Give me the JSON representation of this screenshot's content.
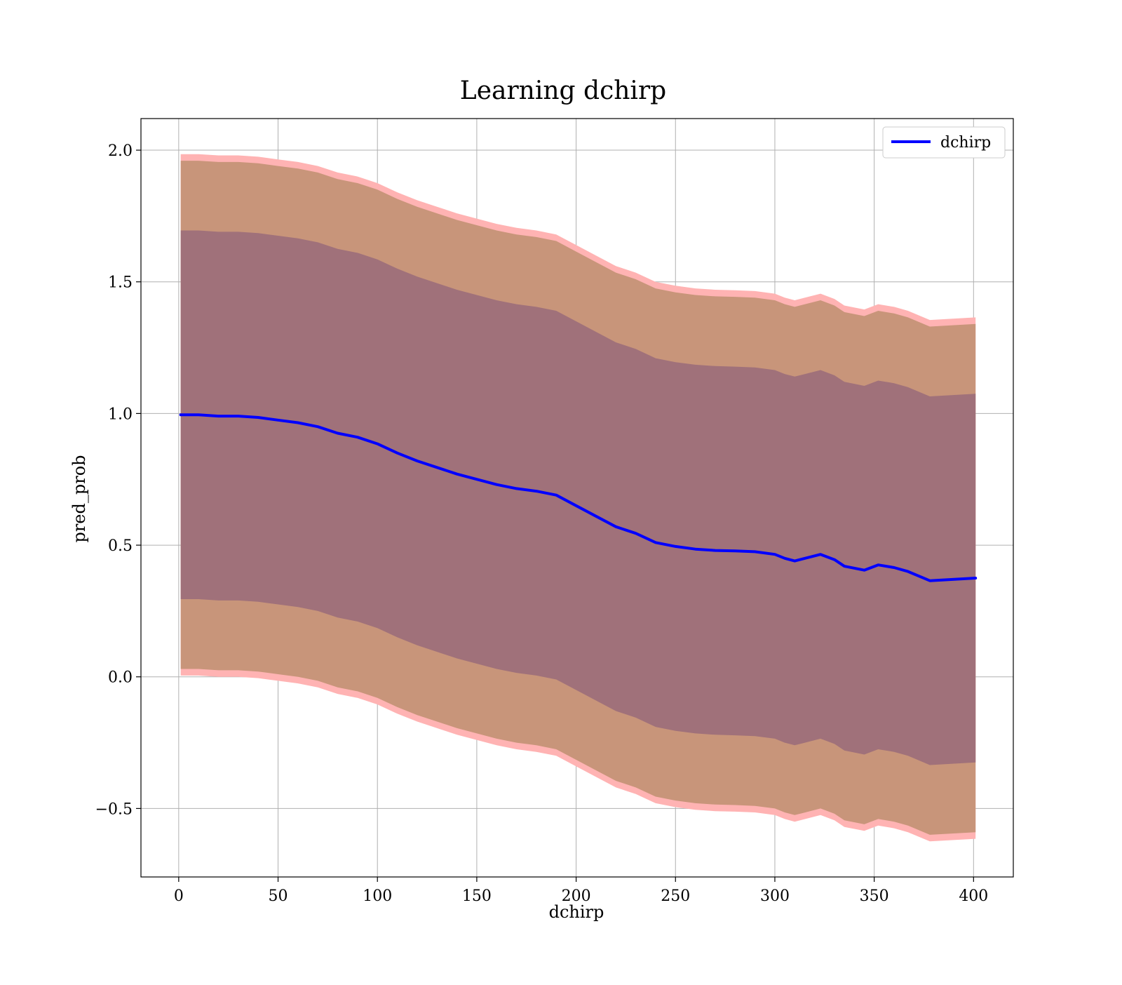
{
  "chart_data": {
    "type": "line",
    "title": "Learning dchirp",
    "xlabel": "dchirp",
    "ylabel": "pred_prob",
    "xlim": [
      -19,
      420
    ],
    "ylim": [
      -0.76,
      2.12
    ],
    "xticks": [
      0,
      50,
      100,
      150,
      200,
      250,
      300,
      350,
      400
    ],
    "yticks": [
      -0.5,
      0.0,
      0.5,
      1.0,
      1.5,
      2.0
    ],
    "xtick_labels": [
      "0",
      "50",
      "100",
      "150",
      "200",
      "250",
      "300",
      "350",
      "400"
    ],
    "ytick_labels": [
      "−0.5",
      "0.0",
      "0.5",
      "1.0",
      "1.5",
      "2.0"
    ],
    "grid": true,
    "legend_position": "top-right",
    "colors": {
      "line": "#0000ff",
      "outer_band": "#ffb3b3",
      "middle_band": "#c8957a",
      "inner_band": "#a0717a",
      "grid": "#b0b0b0"
    },
    "series": [
      {
        "name": "dchirp",
        "x": [
          1,
          10,
          20,
          30,
          40,
          50,
          60,
          70,
          80,
          90,
          100,
          110,
          120,
          130,
          140,
          150,
          160,
          170,
          180,
          190,
          200,
          210,
          220,
          230,
          240,
          250,
          260,
          270,
          280,
          290,
          300,
          305,
          310,
          323,
          330,
          335,
          345,
          352,
          360,
          367,
          378,
          401
        ],
        "y": [
          0.995,
          0.995,
          0.99,
          0.99,
          0.985,
          0.975,
          0.965,
          0.95,
          0.925,
          0.91,
          0.885,
          0.85,
          0.82,
          0.795,
          0.77,
          0.75,
          0.73,
          0.715,
          0.705,
          0.69,
          0.65,
          0.61,
          0.57,
          0.545,
          0.51,
          0.495,
          0.485,
          0.48,
          0.478,
          0.475,
          0.465,
          0.45,
          0.44,
          0.465,
          0.445,
          0.42,
          0.405,
          0.425,
          0.415,
          0.4,
          0.365,
          0.375
        ]
      }
    ],
    "bands": {
      "outer_upper": [
        1.985,
        1.985,
        1.98,
        1.98,
        1.975,
        1.965,
        1.955,
        1.94,
        1.915,
        1.9,
        1.875,
        1.84,
        1.81,
        1.785,
        1.76,
        1.74,
        1.72,
        1.705,
        1.695,
        1.68,
        1.64,
        1.6,
        1.56,
        1.535,
        1.5,
        1.485,
        1.475,
        1.47,
        1.468,
        1.465,
        1.455,
        1.44,
        1.43,
        1.455,
        1.435,
        1.41,
        1.395,
        1.415,
        1.405,
        1.39,
        1.355,
        1.365
      ],
      "outer_lower": [
        0.005,
        0.005,
        0.0,
        0.0,
        -0.005,
        -0.015,
        -0.025,
        -0.04,
        -0.065,
        -0.08,
        -0.105,
        -0.14,
        -0.17,
        -0.195,
        -0.22,
        -0.24,
        -0.26,
        -0.275,
        -0.285,
        -0.3,
        -0.34,
        -0.38,
        -0.42,
        -0.445,
        -0.48,
        -0.495,
        -0.505,
        -0.51,
        -0.512,
        -0.515,
        -0.525,
        -0.54,
        -0.55,
        -0.525,
        -0.545,
        -0.57,
        -0.585,
        -0.565,
        -0.575,
        -0.59,
        -0.625,
        -0.615
      ],
      "middle_upper": [
        1.96,
        1.96,
        1.955,
        1.955,
        1.95,
        1.94,
        1.93,
        1.915,
        1.89,
        1.875,
        1.85,
        1.815,
        1.785,
        1.76,
        1.735,
        1.715,
        1.695,
        1.68,
        1.67,
        1.655,
        1.615,
        1.575,
        1.535,
        1.51,
        1.475,
        1.46,
        1.45,
        1.445,
        1.443,
        1.44,
        1.43,
        1.415,
        1.405,
        1.43,
        1.41,
        1.385,
        1.37,
        1.39,
        1.38,
        1.365,
        1.33,
        1.34
      ],
      "middle_lower": [
        0.03,
        0.03,
        0.025,
        0.025,
        0.02,
        0.01,
        0.0,
        -0.015,
        -0.04,
        -0.055,
        -0.08,
        -0.115,
        -0.145,
        -0.17,
        -0.195,
        -0.215,
        -0.235,
        -0.25,
        -0.26,
        -0.275,
        -0.315,
        -0.355,
        -0.395,
        -0.42,
        -0.455,
        -0.47,
        -0.48,
        -0.485,
        -0.487,
        -0.49,
        -0.5,
        -0.515,
        -0.525,
        -0.5,
        -0.52,
        -0.545,
        -0.56,
        -0.54,
        -0.55,
        -0.565,
        -0.6,
        -0.59
      ],
      "inner_upper": [
        1.695,
        1.695,
        1.69,
        1.69,
        1.685,
        1.675,
        1.665,
        1.65,
        1.625,
        1.61,
        1.585,
        1.55,
        1.52,
        1.495,
        1.47,
        1.45,
        1.43,
        1.415,
        1.405,
        1.39,
        1.35,
        1.31,
        1.27,
        1.245,
        1.21,
        1.195,
        1.185,
        1.18,
        1.178,
        1.175,
        1.165,
        1.15,
        1.14,
        1.165,
        1.145,
        1.12,
        1.105,
        1.125,
        1.115,
        1.1,
        1.065,
        1.075
      ],
      "inner_lower": [
        0.295,
        0.295,
        0.29,
        0.29,
        0.285,
        0.275,
        0.265,
        0.25,
        0.225,
        0.21,
        0.185,
        0.15,
        0.12,
        0.095,
        0.07,
        0.05,
        0.03,
        0.015,
        0.005,
        -0.01,
        -0.05,
        -0.09,
        -0.13,
        -0.155,
        -0.19,
        -0.205,
        -0.215,
        -0.22,
        -0.222,
        -0.225,
        -0.235,
        -0.25,
        -0.26,
        -0.235,
        -0.255,
        -0.28,
        -0.295,
        -0.275,
        -0.285,
        -0.3,
        -0.335,
        -0.325
      ]
    }
  }
}
